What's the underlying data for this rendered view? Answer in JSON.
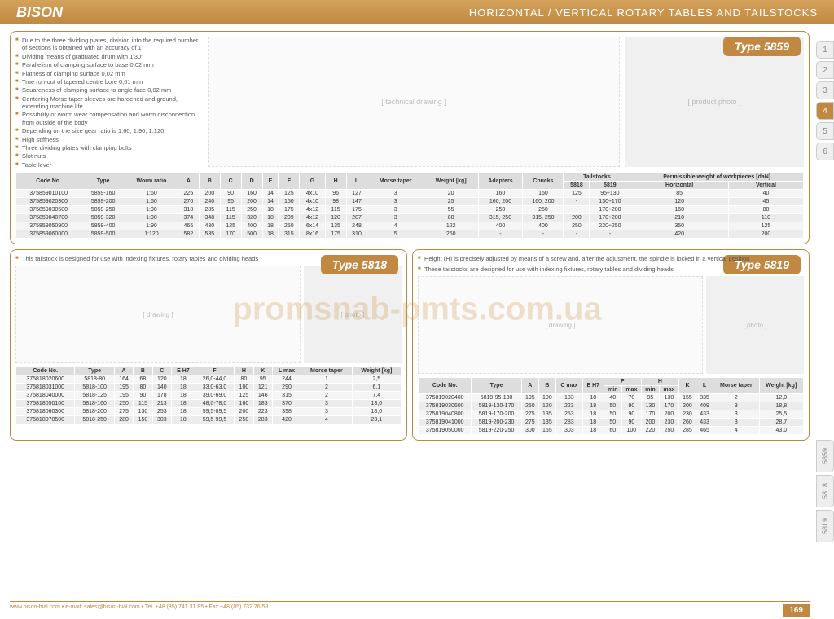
{
  "header": {
    "brand": "BISON",
    "title": "HORIZONTAL / VERTICAL ROTARY TABLES AND TAILSTOCKS"
  },
  "sideTabs": [
    "1",
    "2",
    "3",
    "4",
    "5",
    "6"
  ],
  "sideTabsActive": 3,
  "typeTabs": [
    "5859",
    "5818",
    "5819"
  ],
  "type5859": {
    "badge": "Type 5859",
    "features": [
      "Due to the three dividing plates, division into the required number of sections is obtained with an accuracy of 1'",
      "Dividing means of graduated drum with 1'30\"",
      "Parallelism of clamping surface to base 0,02 mm",
      "Flatness of clamping surface 0,02 mm",
      "True run-out of tapered centre bore 0,01 mm",
      "Squareness of clamping surface to angle face 0,02 mm",
      "Centering Morse taper sleeves are hardened and ground, extending machine life",
      "Possibility of worm wear compensation and worm disconnection from outside of the body",
      "Depending on the size gear ratio is 1:60, 1:90, 1:120",
      "High stiffness",
      "Three dividing plates with clamping bolts",
      "Slot nuts",
      "Table lever"
    ],
    "columns": [
      "Code No.",
      "Type",
      "Worm ratio",
      "A",
      "B",
      "C",
      "D",
      "E",
      "F",
      "G",
      "H",
      "L",
      "Morse taper",
      "Weight [kg]",
      "Adapters",
      "Chucks",
      "5818",
      "5819",
      "Horizontal",
      "Vertical"
    ],
    "groupHeaders": {
      "tailstocks": "Tailstocks",
      "permissible": "Permissible weight of workpieces [daN]"
    },
    "rows": [
      [
        "375859010100",
        "5859-160",
        "1:60",
        "225",
        "200",
        "90",
        "160",
        "14",
        "125",
        "4x10",
        "96",
        "127",
        "3",
        "20",
        "160",
        "160",
        "125",
        "95÷130",
        "85",
        "40"
      ],
      [
        "375859020300",
        "5859-200",
        "1:60",
        "270",
        "240",
        "95",
        "200",
        "14",
        "150",
        "4x10",
        "98",
        "147",
        "3",
        "25",
        "160, 200",
        "160, 200",
        "-",
        "130÷170",
        "120",
        "45"
      ],
      [
        "375859030500",
        "5859-250",
        "1:90",
        "318",
        "285",
        "115",
        "250",
        "18",
        "175",
        "4x12",
        "115",
        "175",
        "3",
        "55",
        "250",
        "250",
        "-",
        "170÷200",
        "160",
        "80"
      ],
      [
        "375859040700",
        "5859-320",
        "1:90",
        "374",
        "348",
        "115",
        "320",
        "18",
        "209",
        "4x12",
        "120",
        "207",
        "3",
        "80",
        "315, 250",
        "315, 250",
        "200",
        "170÷200",
        "210",
        "110"
      ],
      [
        "375859050900",
        "5859-400",
        "1:90",
        "465",
        "430",
        "125",
        "400",
        "18",
        "250",
        "6x14",
        "135",
        "248",
        "4",
        "122",
        "400",
        "400",
        "250",
        "220÷250",
        "350",
        "125"
      ],
      [
        "375859060000",
        "5859-500",
        "1:120",
        "582",
        "535",
        "170",
        "500",
        "18",
        "315",
        "8x16",
        "175",
        "310",
        "5",
        "260",
        "-",
        "-",
        "-",
        "-",
        "420",
        "200"
      ]
    ]
  },
  "type5818": {
    "badge": "Type 5818",
    "note": "This tailstock is designed for use with indexing fixtures, rotary tables and dividing heads",
    "columns": [
      "Code No.",
      "Type",
      "A",
      "B",
      "C",
      "E H7",
      "F",
      "H",
      "K",
      "L max",
      "Morse taper",
      "Weight [kg]"
    ],
    "rows": [
      [
        "375818020600",
        "5818-80",
        "164",
        "68",
        "120",
        "18",
        "26,0-44,0",
        "80",
        "95",
        "244",
        "1",
        "2,5"
      ],
      [
        "375818031000",
        "5818-100",
        "195",
        "80",
        "140",
        "18",
        "33,0-63,0",
        "100",
        "121",
        "290",
        "2",
        "6,1"
      ],
      [
        "375818040000",
        "5818-125",
        "195",
        "90",
        "178",
        "18",
        "39,0-69,0",
        "125",
        "146",
        "315",
        "2",
        "7,4"
      ],
      [
        "375818050100",
        "5818-160",
        "250",
        "115",
        "213",
        "18",
        "48,0-78,0",
        "160",
        "183",
        "370",
        "3",
        "13,0"
      ],
      [
        "375818060300",
        "5818-200",
        "275",
        "130",
        "253",
        "18",
        "59,5-89,5",
        "200",
        "223",
        "398",
        "3",
        "18,0"
      ],
      [
        "375818070500",
        "5818-250",
        "280",
        "150",
        "303",
        "18",
        "59,5-99,5",
        "250",
        "283",
        "420",
        "4",
        "23,1"
      ]
    ]
  },
  "type5819": {
    "badge": "Type 5819",
    "notes": [
      "Height (H) is precisely adjusted by means of a screw and, after the adjustment, the spindle is locked in a vertical position",
      "These tailstocks are designed for use with indexing fixtures, rotary tables and dividing heads"
    ],
    "columns": [
      "Code No.",
      "Type",
      "A",
      "B",
      "C max",
      "E H7",
      "F min",
      "F max",
      "H min",
      "H max",
      "K",
      "L",
      "Morse taper",
      "Weight [kg]"
    ],
    "groupHeaders": {
      "F": "F",
      "H": "H"
    },
    "rows": [
      [
        "375819020400",
        "5819-95-130",
        "195",
        "100",
        "183",
        "18",
        "40",
        "70",
        "95",
        "130",
        "155",
        "335",
        "2",
        "12,0"
      ],
      [
        "375819030600",
        "5819-130-170",
        "250",
        "120",
        "223",
        "18",
        "50",
        "90",
        "130",
        "170",
        "200",
        "409",
        "3",
        "18,8"
      ],
      [
        "375819040800",
        "5819-170-200",
        "275",
        "135",
        "253",
        "18",
        "50",
        "90",
        "170",
        "200",
        "230",
        "433",
        "3",
        "25,5"
      ],
      [
        "375819041000",
        "5819-200-230",
        "275",
        "135",
        "283",
        "18",
        "50",
        "90",
        "200",
        "230",
        "260",
        "433",
        "3",
        "28,7"
      ],
      [
        "375819050000",
        "5819-220-250",
        "300",
        "155",
        "303",
        "18",
        "60",
        "100",
        "220",
        "250",
        "285",
        "465",
        "4",
        "43,0"
      ]
    ]
  },
  "footer": {
    "text": "www.bison-bial.com  •  e-mail: sales@bison-bial.com  •  Tel. +48 (85) 741 31 85  •  Fax +48 (85) 732 76 58",
    "page": "169"
  },
  "watermark": "promsnab-pmts.com.ua",
  "colors": {
    "accent": "#c08840"
  }
}
